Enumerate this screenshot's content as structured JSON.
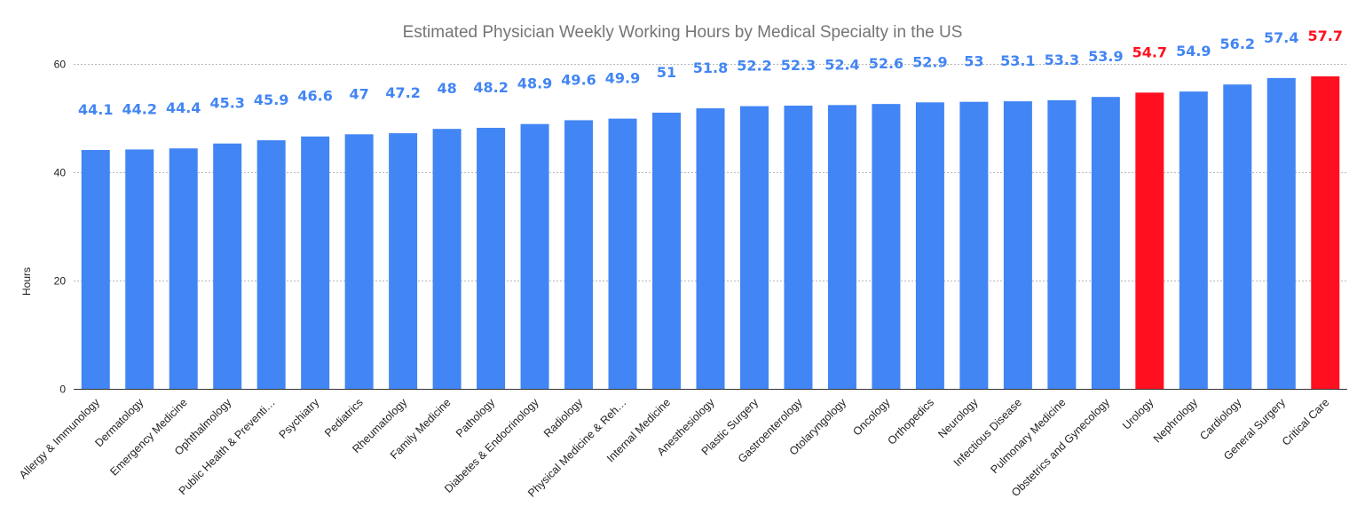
{
  "chart_data": {
    "type": "bar",
    "title": "Estimated Physician Weekly Working Hours by Medical Specialty in the US",
    "xlabel": "",
    "ylabel": "Hours",
    "ylim": [
      0,
      60
    ],
    "yticks": [
      0,
      20,
      40,
      60
    ],
    "grid": true,
    "categories": [
      "Allergy & Immunology",
      "Dermatology",
      "Emergency Medicine",
      "Ophthalmology",
      "Public Health & Preventi…",
      "Psychiatry",
      "Pediatrics",
      "Rheumatology",
      "Family Medicine",
      "Pathology",
      "Diabetes & Endocrinology",
      "Radiology",
      "Physical Medicine & Reh…",
      "Internal Medicine",
      "Anesthesiology",
      "Plastic Surgery",
      "Gastroenterology",
      "Otolaryngology",
      "Oncology",
      "Orthopedics",
      "Neurology",
      "Infectious Disease",
      "Pulmonary Medicine",
      "Obstetrics and Gynecology",
      "Urology",
      "Nephrology",
      "Cardiology",
      "General Surgery",
      "Critical Care"
    ],
    "values": [
      44.1,
      44.2,
      44.4,
      45.3,
      45.9,
      46.6,
      47,
      47.2,
      48,
      48.2,
      48.9,
      49.6,
      49.9,
      51,
      51.8,
      52.2,
      52.3,
      52.4,
      52.6,
      52.9,
      53,
      53.1,
      53.3,
      53.9,
      54.7,
      54.9,
      56.2,
      57.4,
      57.7
    ],
    "value_labels": [
      "44.1",
      "44.2",
      "44.4",
      "45.3",
      "45.9",
      "46.6",
      "47",
      "47.2",
      "48",
      "48.2",
      "48.9",
      "49.6",
      "49.9",
      "51",
      "51.8",
      "52.2",
      "52.3",
      "52.4",
      "52.6",
      "52.9",
      "53",
      "53.1",
      "53.3",
      "53.9",
      "54.7",
      "54.9",
      "56.2",
      "57.4",
      "57.7"
    ],
    "highlighted": [
      "Urology",
      "Critical Care"
    ],
    "colors": {
      "bar": "#4285f4",
      "highlight": "#ff0f1f",
      "title": "#757575"
    }
  }
}
